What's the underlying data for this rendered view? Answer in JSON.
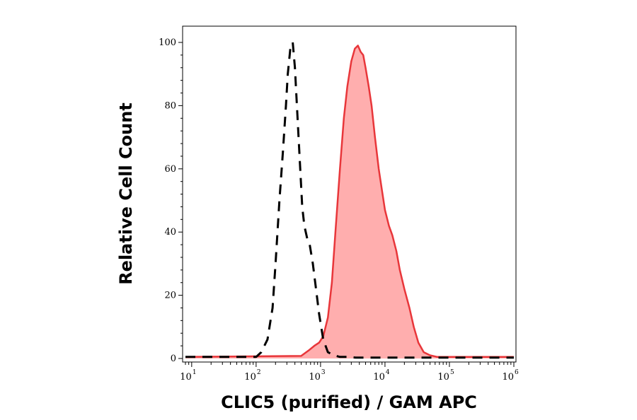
{
  "chart_data": {
    "type": "area",
    "xlabel": "CLIC5 (purified) / GAM APC",
    "ylabel": "Relative Cell Count",
    "x_scale": "log",
    "xlim": [
      8,
      1000000
    ],
    "ylim": [
      0,
      105
    ],
    "x_ticks": [
      {
        "base": "10",
        "exp": "1",
        "value": 10
      },
      {
        "base": "10",
        "exp": "2",
        "value": 100
      },
      {
        "base": "10",
        "exp": "3",
        "value": 1000
      },
      {
        "base": "10",
        "exp": "4",
        "value": 10000
      },
      {
        "base": "10",
        "exp": "5",
        "value": 100000
      },
      {
        "base": "10",
        "exp": "6",
        "value": 1000000
      }
    ],
    "y_ticks": [
      "0",
      "20",
      "40",
      "60",
      "80",
      "100"
    ],
    "colors": {
      "sample_line": "#e8363a",
      "sample_fill": "#ffaeae",
      "control_line": "#000000"
    },
    "series": [
      {
        "style": "dashed-black",
        "x": [
          8,
          100,
          120,
          150,
          180,
          200,
          230,
          260,
          290,
          310,
          340,
          370,
          400,
          430,
          470,
          520,
          560,
          620,
          680,
          760,
          850,
          950,
          1100,
          1300,
          1600,
          2000,
          2600,
          3500,
          1000000
        ],
        "y": [
          0.5,
          0.5,
          2,
          6,
          16,
          30,
          50,
          65,
          80,
          90,
          98,
          100,
          92,
          80,
          65,
          48,
          42,
          38,
          36,
          30,
          22,
          14,
          6,
          2,
          1,
          0.5,
          0.5,
          0.3,
          0.3
        ]
      },
      {
        "style": "filled-red",
        "x": [
          8,
          500,
          650,
          800,
          950,
          1100,
          1300,
          1500,
          1700,
          2000,
          2300,
          2600,
          3000,
          3400,
          3800,
          4200,
          4600,
          5000,
          5600,
          6200,
          7000,
          8000,
          9000,
          10000,
          11500,
          13000,
          15000,
          17000,
          20000,
          24000,
          28000,
          33000,
          40000,
          50000,
          65000,
          1000000
        ],
        "y": [
          0.5,
          0.8,
          2.5,
          4,
          5,
          7,
          13,
          24,
          40,
          60,
          76,
          86,
          94,
          98,
          99,
          97,
          96,
          92,
          86,
          80,
          70,
          60,
          53,
          47,
          42,
          39,
          34,
          28,
          22,
          16,
          10,
          5,
          2,
          1,
          0.5,
          0.5
        ]
      }
    ]
  }
}
